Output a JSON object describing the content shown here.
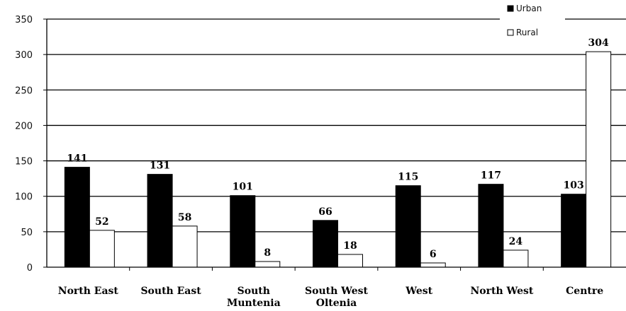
{
  "chart_data": {
    "type": "bar",
    "categories": [
      [
        "North East"
      ],
      [
        "South East"
      ],
      [
        "South",
        "Muntenia"
      ],
      [
        "South West",
        "Oltenia"
      ],
      [
        "West"
      ],
      [
        "North West"
      ],
      [
        "Centre"
      ]
    ],
    "series": [
      {
        "name": "Urban",
        "values": [
          141,
          131,
          101,
          66,
          115,
          117,
          103
        ],
        "color": "#000000"
      },
      {
        "name": "Rural",
        "values": [
          52,
          58,
          8,
          18,
          6,
          24,
          304
        ],
        "color": "#ffffff"
      }
    ],
    "ylim": [
      0,
      350
    ],
    "yticks": [
      0,
      50,
      100,
      150,
      200,
      250,
      300,
      350
    ],
    "grid": true,
    "legend": "top-right",
    "title": "",
    "xlabel": "",
    "ylabel": ""
  }
}
